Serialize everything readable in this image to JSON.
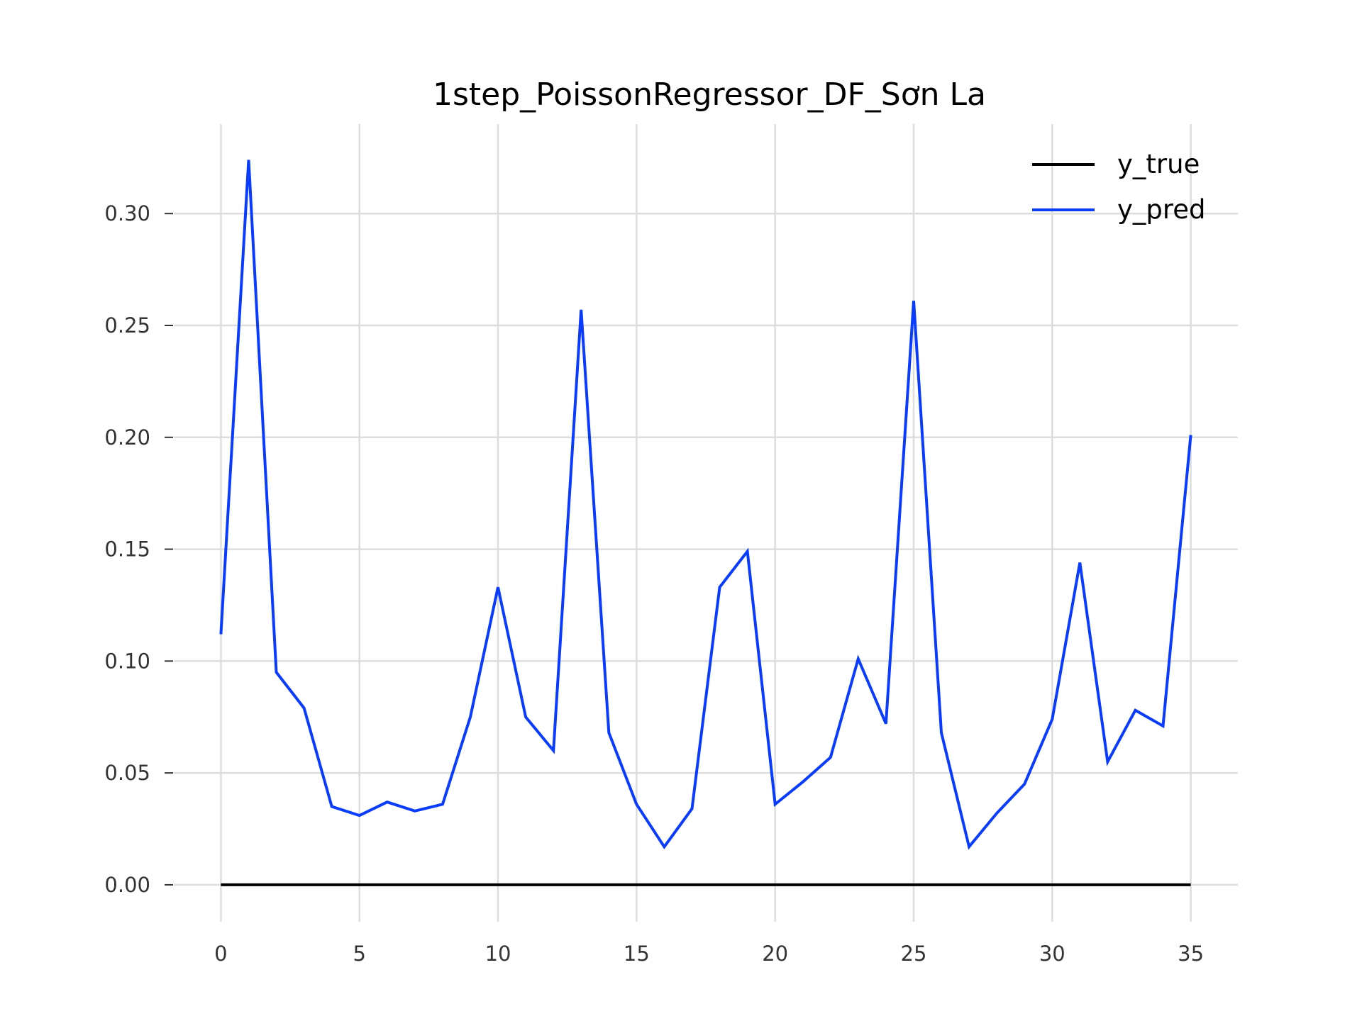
{
  "chart_data": {
    "type": "line",
    "title": "1step_PoissonRegressor_DF_Sơn La",
    "xlabel": "",
    "ylabel": "",
    "xlim": [
      -1.7,
      36.7
    ],
    "ylim": [
      -0.0165,
      0.34
    ],
    "xticks": [
      0,
      5,
      10,
      15,
      20,
      25,
      30,
      35
    ],
    "xtick_labels": [
      "0",
      "5",
      "10",
      "15",
      "20",
      "25",
      "30",
      "35"
    ],
    "yticks": [
      0.0,
      0.05,
      0.1,
      0.15,
      0.2,
      0.25,
      0.3
    ],
    "ytick_labels": [
      "0.00",
      "0.05",
      "0.10",
      "0.15",
      "0.20",
      "0.25",
      "0.30"
    ],
    "grid": true,
    "legend_position": "top-right",
    "x": [
      0,
      1,
      2,
      3,
      4,
      5,
      6,
      7,
      8,
      9,
      10,
      11,
      12,
      13,
      14,
      15,
      16,
      17,
      18,
      19,
      20,
      21,
      22,
      23,
      24,
      25,
      26,
      27,
      28,
      29,
      30,
      31,
      32,
      33,
      34,
      35
    ],
    "series": [
      {
        "name": "y_true",
        "color": "#000000",
        "values": [
          0,
          0,
          0,
          0,
          0,
          0,
          0,
          0,
          0,
          0,
          0,
          0,
          0,
          0,
          0,
          0,
          0,
          0,
          0,
          0,
          0,
          0,
          0,
          0,
          0,
          0,
          0,
          0,
          0,
          0,
          0,
          0,
          0,
          0,
          0,
          0
        ]
      },
      {
        "name": "y_pred",
        "color": "#0a3cff",
        "values": [
          0.112,
          0.324,
          0.095,
          0.079,
          0.035,
          0.031,
          0.037,
          0.033,
          0.036,
          0.075,
          0.133,
          0.075,
          0.06,
          0.257,
          0.068,
          0.036,
          0.017,
          0.034,
          0.133,
          0.149,
          0.036,
          0.046,
          0.057,
          0.101,
          0.072,
          0.261,
          0.068,
          0.017,
          0.032,
          0.045,
          0.074,
          0.144,
          0.055,
          0.078,
          0.071,
          0.201
        ]
      }
    ]
  }
}
